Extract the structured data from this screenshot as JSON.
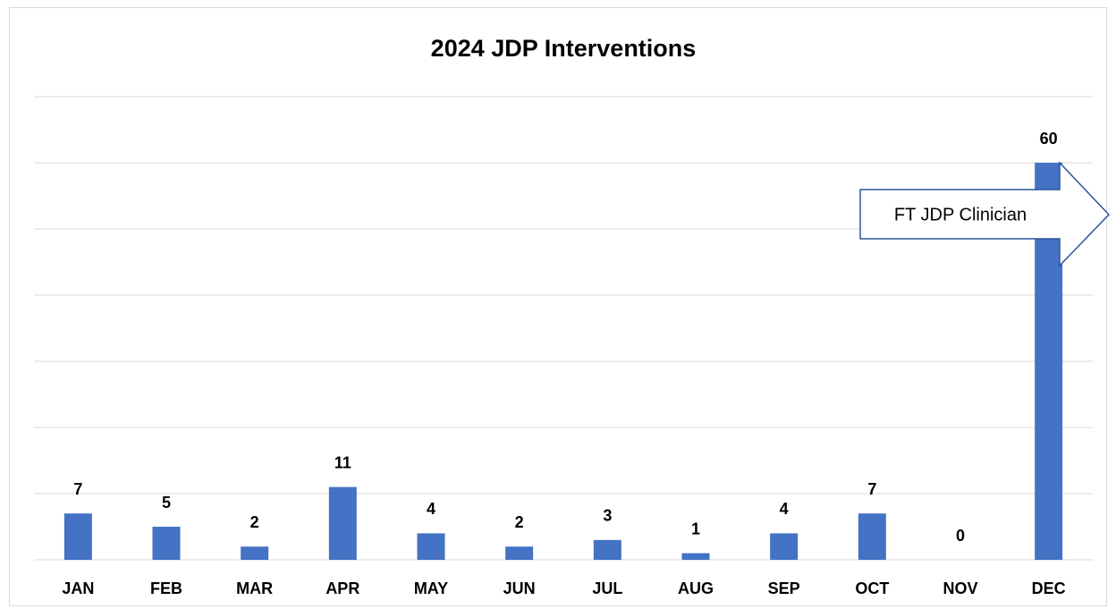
{
  "chart_data": {
    "type": "bar",
    "title": "2024 JDP Interventions",
    "categories": [
      "JAN",
      "FEB",
      "MAR",
      "APR",
      "MAY",
      "JUN",
      "JUL",
      "AUG",
      "SEP",
      "OCT",
      "NOV",
      "DEC"
    ],
    "values": [
      7,
      5,
      2,
      11,
      4,
      2,
      3,
      1,
      4,
      7,
      0,
      60
    ],
    "color": "#4472c4",
    "ylim": [
      0,
      70
    ],
    "yticks": [
      0,
      10,
      20,
      30,
      40,
      50,
      60,
      70
    ],
    "grid": true,
    "annotations": [
      "FT JDP Clinician"
    ]
  }
}
